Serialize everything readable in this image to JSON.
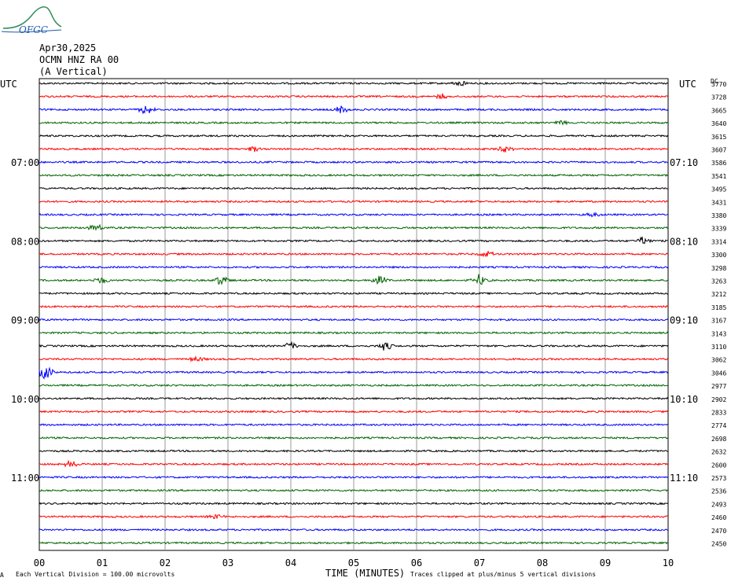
{
  "header": {
    "date": "Apr30,2025",
    "station": "OCMN HNZ RA 00",
    "component": "(A Vertical)",
    "logo_text": "OFGC"
  },
  "left_tz": "UTC",
  "right_tz": "UTC",
  "dc_label": "DC",
  "footer": {
    "left": "Each Vertical Division =  100.00 microvolts",
    "center": "TIME (MINUTES)",
    "right": "Traces clipped at plus/minus 5 vertical divisions",
    "corner": "A"
  },
  "colors": {
    "trace_cycle": [
      "#000000",
      "#ff0000",
      "#0000ff",
      "#006400"
    ],
    "grid": "#808080"
  },
  "chart_data": {
    "type": "line",
    "title": "",
    "xlabel": "TIME (MINUTES)",
    "x_ticks": [
      "00",
      "01",
      "02",
      "03",
      "04",
      "05",
      "06",
      "07",
      "08",
      "09",
      "10"
    ],
    "xlim": [
      0,
      10
    ],
    "traces_count": 36,
    "left_time_labels": [
      {
        "row": 6,
        "text": "07:00"
      },
      {
        "row": 12,
        "text": "08:00"
      },
      {
        "row": 18,
        "text": "09:00"
      },
      {
        "row": 24,
        "text": "10:00"
      },
      {
        "row": 30,
        "text": "11:00"
      }
    ],
    "right_time_labels": [
      {
        "row": 6,
        "text": "07:10"
      },
      {
        "row": 12,
        "text": "08:10"
      },
      {
        "row": 18,
        "text": "09:10"
      },
      {
        "row": 24,
        "text": "10:10"
      },
      {
        "row": 30,
        "text": "11:10"
      }
    ],
    "dc_values": [
      "3770",
      "3728",
      "3665",
      "3640",
      "3615",
      "3607",
      "3586",
      "3541",
      "3495",
      "3431",
      "3380",
      "3339",
      "3314",
      "3300",
      "3298",
      "3263",
      "3212",
      "3185",
      "3167",
      "3143",
      "3110",
      "3062",
      "3046",
      "2977",
      "2902",
      "2833",
      "2774",
      "2698",
      "2632",
      "2600",
      "2573",
      "2536",
      "2493",
      "2460",
      "2470",
      "2450"
    ],
    "events": [
      {
        "trace": 0,
        "minute": 6.7,
        "amp": 4
      },
      {
        "trace": 1,
        "minute": 6.4,
        "amp": 4
      },
      {
        "trace": 2,
        "minute": 1.7,
        "amp": 6
      },
      {
        "trace": 2,
        "minute": 4.8,
        "amp": 5
      },
      {
        "trace": 3,
        "minute": 8.3,
        "amp": 3
      },
      {
        "trace": 5,
        "minute": 3.4,
        "amp": 4
      },
      {
        "trace": 5,
        "minute": 7.4,
        "amp": 4
      },
      {
        "trace": 10,
        "minute": 8.8,
        "amp": 4
      },
      {
        "trace": 11,
        "minute": 0.9,
        "amp": 4
      },
      {
        "trace": 12,
        "minute": 9.6,
        "amp": 5
      },
      {
        "trace": 13,
        "minute": 7.1,
        "amp": 4
      },
      {
        "trace": 15,
        "minute": 7.0,
        "amp": 8
      },
      {
        "trace": 15,
        "minute": 5.4,
        "amp": 6
      },
      {
        "trace": 15,
        "minute": 1.0,
        "amp": 5
      },
      {
        "trace": 15,
        "minute": 2.9,
        "amp": 7
      },
      {
        "trace": 20,
        "minute": 4.0,
        "amp": 5
      },
      {
        "trace": 20,
        "minute": 5.5,
        "amp": 6
      },
      {
        "trace": 21,
        "minute": 2.5,
        "amp": 4
      },
      {
        "trace": 22,
        "minute": 0.1,
        "amp": 9
      },
      {
        "trace": 29,
        "minute": 0.5,
        "amp": 4
      },
      {
        "trace": 33,
        "minute": 2.8,
        "amp": 3
      }
    ]
  }
}
